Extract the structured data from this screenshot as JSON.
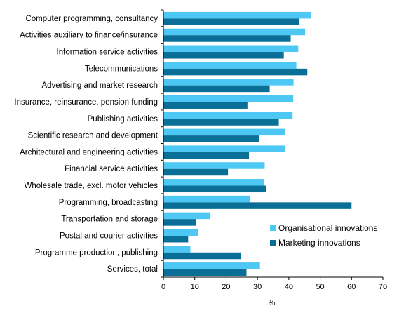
{
  "chart_data": {
    "type": "bar",
    "orientation": "horizontal",
    "categories": [
      "Computer programming, consultancy",
      "Activities auxiliary to finance/insurance",
      "Information service activities",
      "Telecommunications",
      "Advertising and market research",
      "Insurance, reinsurance, pension funding",
      "Publishing activities",
      "Scientific research and development",
      "Architectural and engineering activities",
      "Financial service activities",
      "Wholesale trade, excl. motor vehicles",
      "Programming, broadcasting",
      "Transportation and storage",
      "Postal and courier activities",
      "Programme production, publishing",
      "Services, total"
    ],
    "series": [
      {
        "name": "Organisational innovations",
        "color": "#4dc8f5",
        "values": [
          47,
          45.2,
          43,
          42.4,
          41.5,
          41.4,
          41.2,
          38.9,
          38.9,
          32.3,
          32.1,
          27.7,
          15,
          11.1,
          8.6,
          30.8
        ]
      },
      {
        "name": "Marketing innovations",
        "color": "#0a6f96",
        "values": [
          43.4,
          40.6,
          38.4,
          45.9,
          33.9,
          26.8,
          36.8,
          30.6,
          27.3,
          20.6,
          32.8,
          60,
          10.4,
          7.9,
          24.6,
          26.5
        ]
      }
    ],
    "xlim": [
      0,
      70
    ],
    "xticks": [
      "0",
      "10",
      "20",
      "30",
      "40",
      "50",
      "60",
      "70"
    ],
    "xlabel": "%",
    "grid": false,
    "legend": "bottom-right"
  }
}
